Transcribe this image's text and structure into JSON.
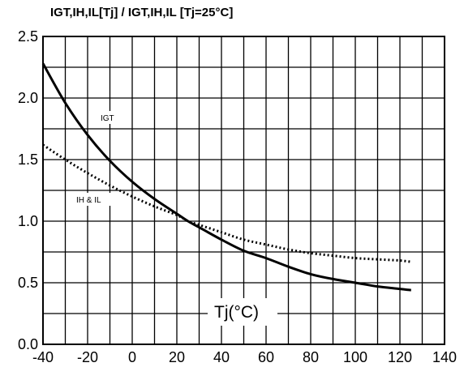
{
  "chart_data": {
    "type": "line",
    "title": "IGT,IH,IL[Tj] / IGT,IH,IL [Tj=25°C]",
    "xlabel": "Tj(°C)",
    "ylabel": "",
    "xlim": [
      -40,
      140
    ],
    "ylim": [
      0,
      2.5
    ],
    "x_ticks": [
      "-40",
      "-20",
      "0",
      "20",
      "40",
      "60",
      "80",
      "100",
      "120",
      "140"
    ],
    "y_ticks": [
      "0.0",
      "0.5",
      "1.0",
      "1.5",
      "2.0",
      "2.5"
    ],
    "grid": true,
    "legend": "none",
    "series": [
      {
        "name": "IGT",
        "style": "solid",
        "x": [
          -40,
          -30,
          -20,
          -10,
          0,
          10,
          20,
          25,
          30,
          40,
          50,
          60,
          70,
          80,
          90,
          100,
          110,
          120,
          125
        ],
        "y": [
          2.28,
          1.96,
          1.7,
          1.49,
          1.32,
          1.18,
          1.06,
          1.0,
          0.95,
          0.85,
          0.76,
          0.7,
          0.63,
          0.57,
          0.53,
          0.5,
          0.47,
          0.45,
          0.44
        ]
      },
      {
        "name": "IH & IL",
        "style": "dotted",
        "x": [
          -40,
          -30,
          -20,
          -10,
          0,
          10,
          20,
          25,
          30,
          40,
          50,
          60,
          70,
          80,
          90,
          100,
          110,
          120,
          125
        ],
        "y": [
          1.62,
          1.5,
          1.39,
          1.29,
          1.2,
          1.12,
          1.05,
          1.0,
          0.97,
          0.91,
          0.85,
          0.81,
          0.77,
          0.74,
          0.72,
          0.7,
          0.69,
          0.68,
          0.67
        ]
      }
    ],
    "annotations": [
      "IGT",
      "IH & IL"
    ],
    "colors": {
      "line": "#000000",
      "grid": "#000000",
      "background": "#ffffff"
    }
  }
}
